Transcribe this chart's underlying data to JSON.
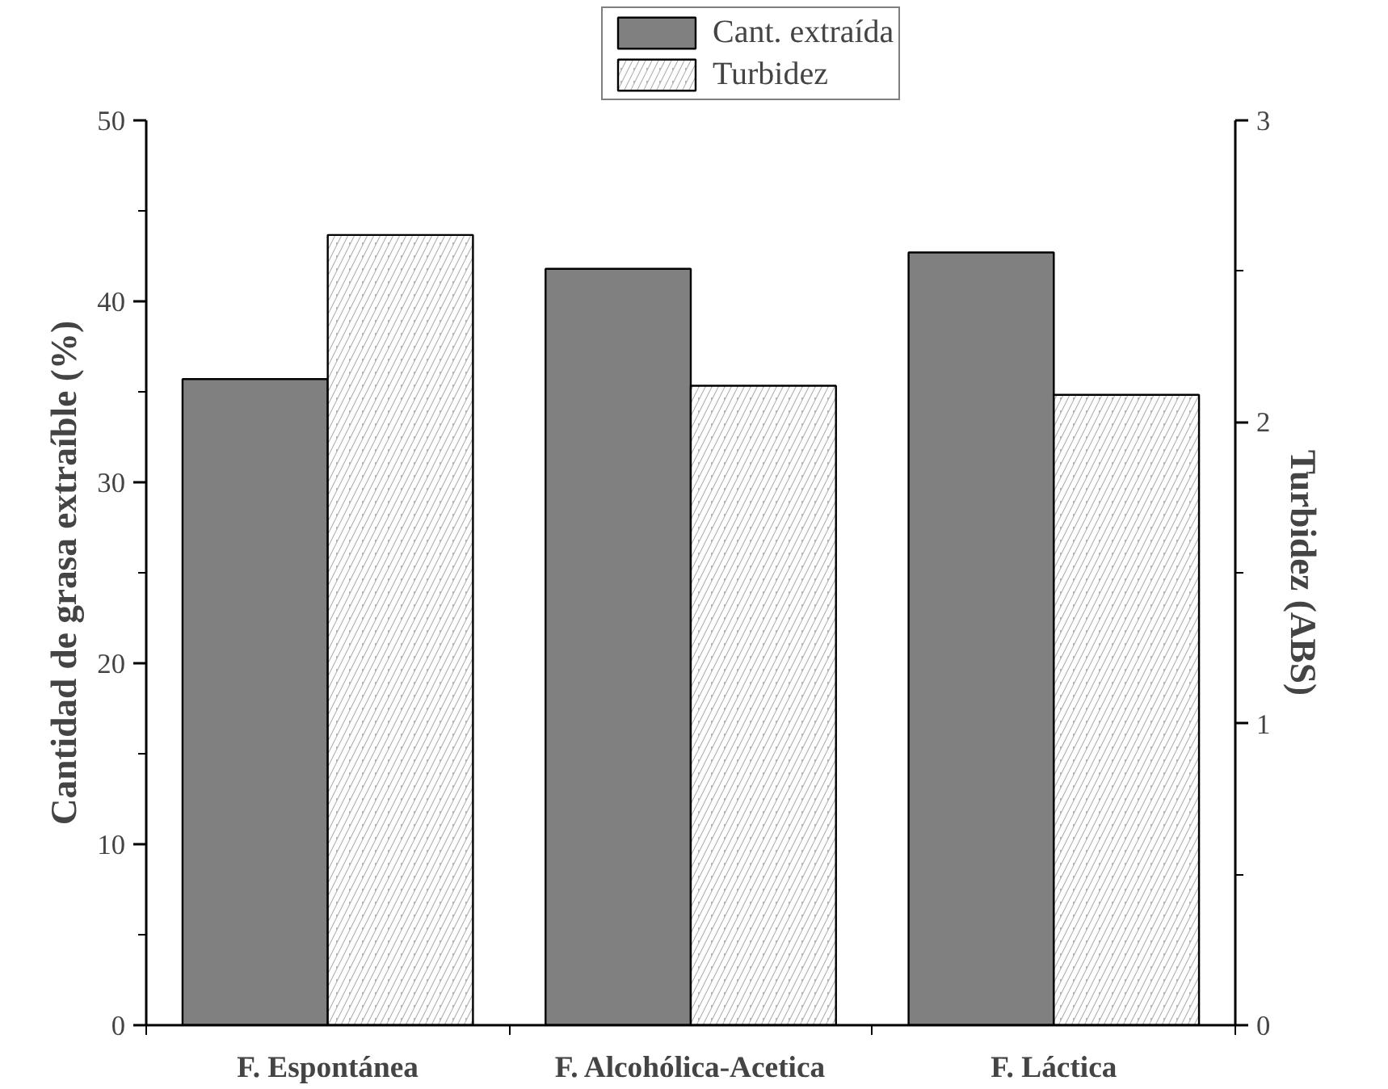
{
  "chart_data": {
    "type": "bar",
    "categories": [
      "F. Espontánea",
      "F. Alcohólica-Acetica",
      "F. Láctica"
    ],
    "series": [
      {
        "name": "Cant. extraída",
        "color": "#808080",
        "values": [
          35.7,
          41.8,
          42.7
        ]
      },
      {
        "name": "Turbidez",
        "color": "#b4b4b4",
        "axis": "y2",
        "values": [
          2.62,
          2.12,
          2.09
        ]
      }
    ],
    "ylabel": "Cantidad de grasa extraíble (%)",
    "y2label": "Turbidez (ABS)",
    "ylim": [
      0,
      50
    ],
    "yticks": [
      0,
      10,
      20,
      30,
      40,
      50
    ],
    "y2lim": [
      0,
      3
    ],
    "y2ticks": [
      0,
      1,
      2,
      3
    ],
    "grid": false,
    "legend": "top"
  }
}
